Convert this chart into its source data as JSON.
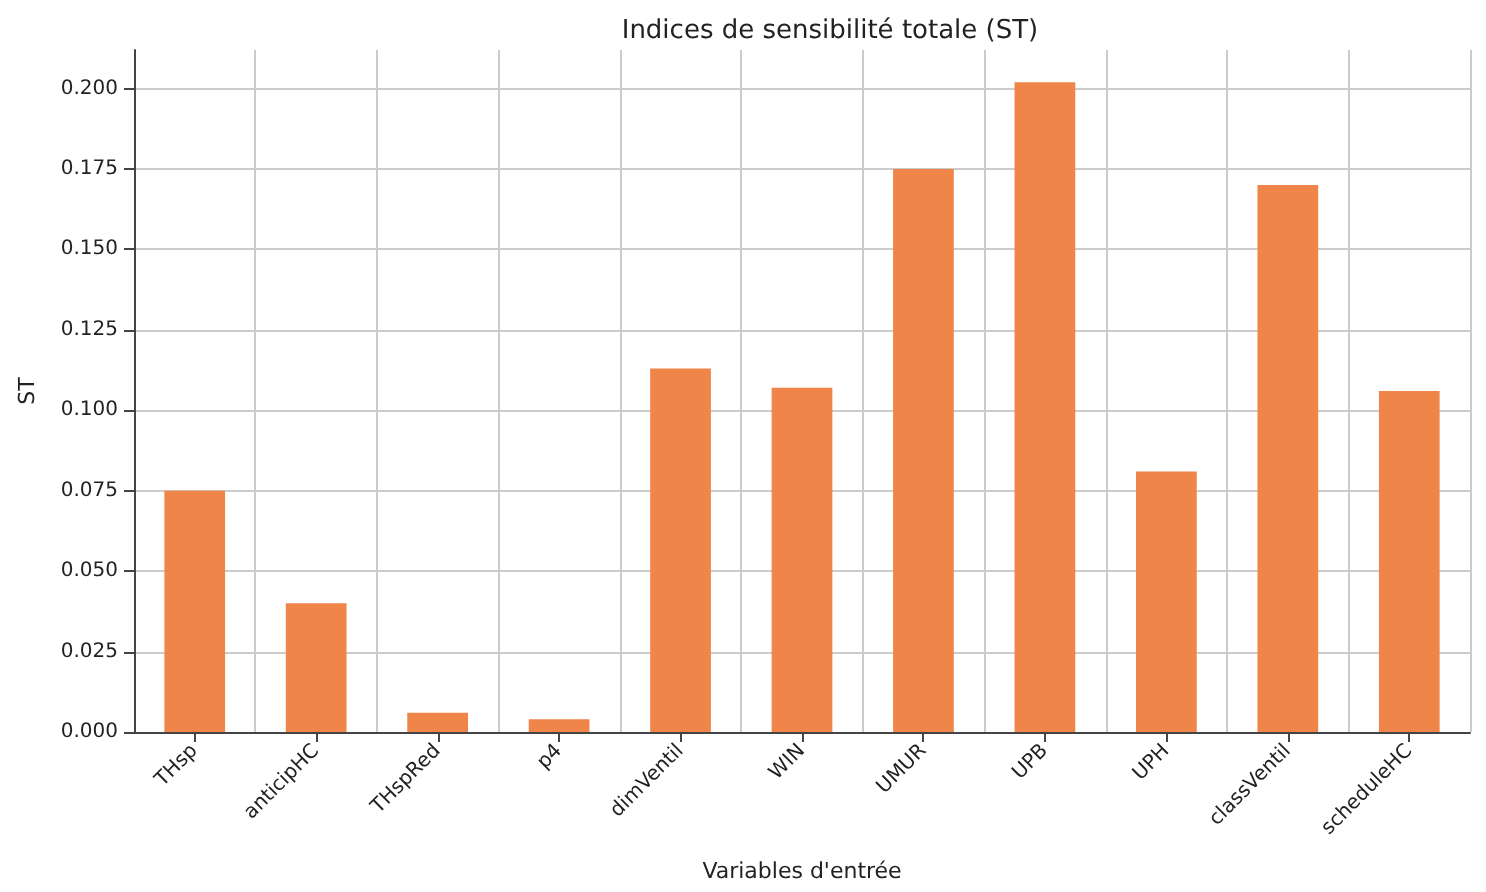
{
  "chart_data": {
    "type": "bar",
    "title": "Indices de sensibilité totale (ST)",
    "xlabel": "Variables d'entrée",
    "ylabel": "ST",
    "categories": [
      "THsp",
      "anticipHC",
      "THspRed",
      "p4",
      "dimVentil",
      "WIN",
      "UMUR",
      "UPB",
      "UPH",
      "classVentil",
      "scheduleHC"
    ],
    "values": [
      0.075,
      0.04,
      0.006,
      0.004,
      0.113,
      0.107,
      0.175,
      0.202,
      0.081,
      0.17,
      0.106
    ],
    "color": "#f0854a",
    "ylim": [
      0,
      0.212
    ],
    "yticks": [
      {
        "value": 0,
        "label": "0.000"
      },
      {
        "value": 0.025,
        "label": "0.025"
      },
      {
        "value": 0.05,
        "label": "0.050"
      },
      {
        "value": 0.075,
        "label": "0.075"
      },
      {
        "value": 0.1,
        "label": "0.100"
      },
      {
        "value": 0.125,
        "label": "0.125"
      },
      {
        "value": 0.15,
        "label": "0.150"
      },
      {
        "value": 0.175,
        "label": "0.175"
      },
      {
        "value": 0.2,
        "label": "0.200"
      }
    ],
    "grid": true
  }
}
